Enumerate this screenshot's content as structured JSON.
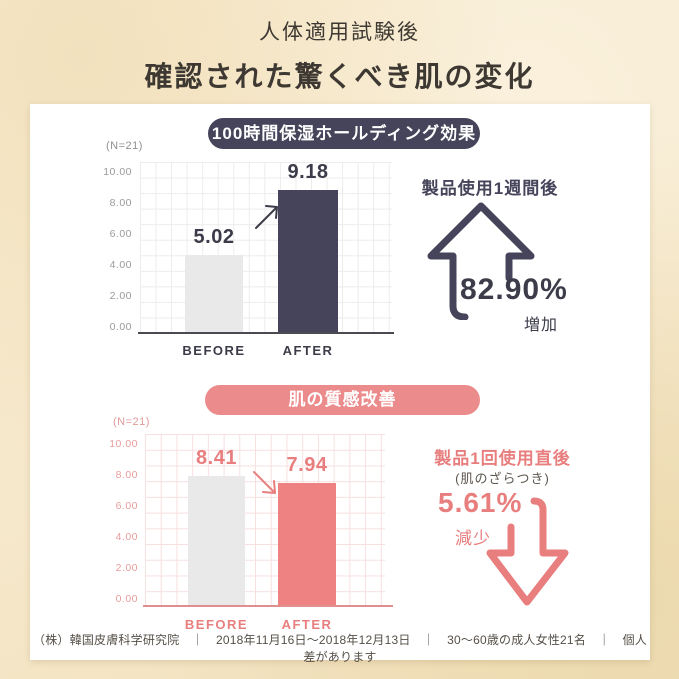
{
  "page": {
    "title_line1": "人体適用試験後",
    "title_line2": "確認された驚くべき肌の変化",
    "footer": "（株）韓国皮膚科学研究院　｜　2018年11月16日～2018年12月13日　｜　30～60歳の成人女性21名　｜　個人差があります"
  },
  "colors": {
    "navy": "#45445a",
    "pink": "#ec8b8b",
    "pink_bar": "#ee8181",
    "gray_bar": "#e9e9e9",
    "arrow_dark": "#3b3b49",
    "arrow_pink": "#e87e7e",
    "background_cream": "#f6e8cb",
    "card_white": "#ffffff"
  },
  "chart_data": [
    {
      "type": "bar",
      "title": "100時間保湿ホールディング効果",
      "sample_label": "(N=21)",
      "categories": [
        "BEFORE",
        "AFTER"
      ],
      "values": [
        5.02,
        9.18
      ],
      "ylim": [
        0,
        10
      ],
      "yticks": [
        "10.00",
        "8.00",
        "6.00",
        "4.00",
        "2.00",
        "0.00"
      ],
      "grid": true,
      "bar_colors": [
        "#e9e9e9",
        "#45445a"
      ],
      "trend": "increase",
      "annotation": {
        "heading": "製品使用1週間後",
        "percent": "82.90%",
        "direction_label": "増加",
        "arrow": "up"
      }
    },
    {
      "type": "bar",
      "title": "肌の質感改善",
      "sample_label": "(N=21)",
      "categories": [
        "BEFORE",
        "AFTER"
      ],
      "values": [
        8.41,
        7.94
      ],
      "ylim": [
        0,
        10
      ],
      "yticks": [
        "10.00",
        "8.00",
        "6.00",
        "4.00",
        "2.00",
        "0.00"
      ],
      "grid": true,
      "bar_colors": [
        "#e9e9e9",
        "#ee8181"
      ],
      "trend": "decrease",
      "annotation": {
        "heading": "製品1回使用直後",
        "subheading": "(肌のざらつき)",
        "percent": "5.61%",
        "direction_label": "減少",
        "arrow": "down"
      }
    }
  ]
}
